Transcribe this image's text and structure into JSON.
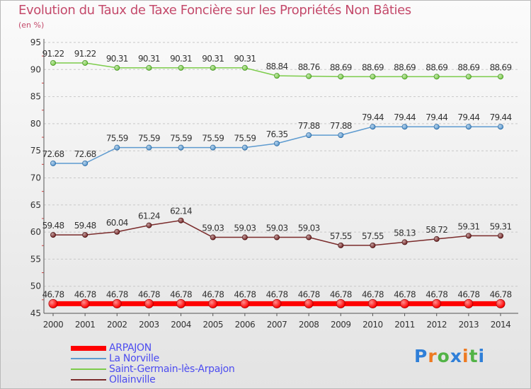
{
  "title": "Evolution du Taux de Taxe Foncière sur les Propriétés Non Bâties",
  "subtitle": "(en %)",
  "logo": {
    "letters": [
      "P",
      "r",
      "o",
      "x",
      "i",
      "t",
      "i"
    ],
    "colors": [
      "#2f7fd8",
      "#ee7a21",
      "#52b346",
      "#2f7fd8",
      "#ee7a21",
      "#52b346",
      "#2f7fd8"
    ]
  },
  "chart_data": {
    "type": "line",
    "title": "Evolution du Taux de Taxe Foncière sur les Propriétés Non Bâties",
    "ylabel": "(en %)",
    "xlabel": "",
    "x": [
      "2000",
      "2001",
      "2002",
      "2003",
      "2004",
      "2005",
      "2006",
      "2007",
      "2008",
      "2009",
      "2010",
      "2011",
      "2012",
      "2013",
      "2014"
    ],
    "ylim": [
      45,
      95
    ],
    "yticks": [
      45,
      50,
      55,
      60,
      65,
      70,
      75,
      80,
      85,
      90,
      95
    ],
    "grid": "horizontal dashed",
    "legend_position": "bottom-left",
    "series": [
      {
        "name": "ARPAJON",
        "color": "#ff0000",
        "values": [
          46.78,
          46.78,
          46.78,
          46.78,
          46.78,
          46.78,
          46.78,
          46.78,
          46.78,
          46.78,
          46.78,
          46.78,
          46.78,
          46.78,
          46.78
        ],
        "labels": [
          "46.78",
          "46.78",
          "46.78",
          "46.78",
          "46.78",
          "46.78",
          "46.78",
          "46.78",
          "46.78",
          "46.78",
          "46.78",
          "46.78",
          "46.78",
          "46.78",
          "46.78"
        ]
      },
      {
        "name": "La Norville",
        "color": "#5e9bd0",
        "values": [
          72.68,
          72.68,
          75.59,
          75.59,
          75.59,
          75.59,
          75.59,
          76.35,
          77.88,
          77.88,
          79.44,
          79.44,
          79.44,
          79.44,
          79.44
        ],
        "labels": [
          "72.68",
          "72.68",
          "75.59",
          "75.59",
          "75.59",
          "75.59",
          "75.59",
          "76.35",
          "77.88",
          "77.88",
          "79.44",
          "79.44",
          "79.44",
          "79.44",
          "79.44"
        ]
      },
      {
        "name": "Saint-Germain-lès-Arpajon",
        "color": "#7ccc4a",
        "values": [
          91.22,
          91.22,
          90.31,
          90.31,
          90.31,
          90.31,
          90.31,
          88.84,
          88.76,
          88.69,
          88.69,
          88.69,
          88.69,
          88.69,
          88.69
        ],
        "labels": [
          "91.22",
          "91.22",
          "90.31",
          "90.31",
          "90.31",
          "90.31",
          "90.31",
          "88.84",
          "88.76",
          "88.69",
          "88.69",
          "88.69",
          "88.69",
          "88.69",
          "88.69"
        ]
      },
      {
        "name": "Ollainville",
        "color": "#7a2b2b",
        "values": [
          59.48,
          59.48,
          60.04,
          61.24,
          62.14,
          59.03,
          59.03,
          59.03,
          59.03,
          57.55,
          57.55,
          58.13,
          58.72,
          59.31,
          59.31
        ],
        "labels": [
          "59.48",
          "59.48",
          "60.04",
          "61.24",
          "62.14",
          "59.03",
          "59.03",
          "59.03",
          "59.03",
          "57.55",
          "57.55",
          "58.13",
          "58.72",
          "59.31",
          "59.31"
        ]
      }
    ]
  }
}
